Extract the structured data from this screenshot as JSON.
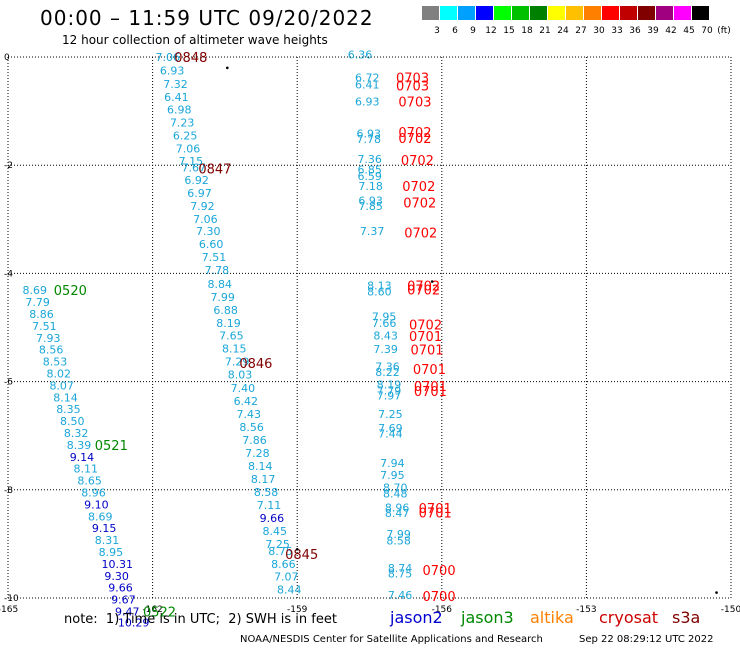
{
  "header": {
    "title": "00:00 – 11:59 UTC 09/20/2022",
    "subtitle": "12 hour collection of altimeter wave heights"
  },
  "colorbar": {
    "unit": "(ft)",
    "bins": [
      {
        "label": "3",
        "color": "#808080"
      },
      {
        "label": "6",
        "color": "#00ffff"
      },
      {
        "label": "9",
        "color": "#00a0ff"
      },
      {
        "label": "12",
        "color": "#0000ff"
      },
      {
        "label": "15",
        "color": "#00ff00"
      },
      {
        "label": "18",
        "color": "#00c000"
      },
      {
        "label": "21",
        "color": "#008000"
      },
      {
        "label": "24",
        "color": "#ffff00"
      },
      {
        "label": "27",
        "color": "#ffc000"
      },
      {
        "label": "30",
        "color": "#ff8000"
      },
      {
        "label": "33",
        "color": "#ff0000"
      },
      {
        "label": "36",
        "color": "#c00000"
      },
      {
        "label": "39",
        "color": "#800000"
      },
      {
        "label": "42",
        "color": "#a00080"
      },
      {
        "label": "45",
        "color": "#ff00ff"
      },
      {
        "label": "70",
        "color": "#000000"
      }
    ]
  },
  "chart_data": {
    "type": "scatter",
    "description_of_axes": "longitude (x) vs latitude (y)",
    "xlim": [
      -165,
      -150
    ],
    "ylim": [
      -10,
      0
    ],
    "x_ticks": [
      "-165",
      "-162",
      "-159",
      "-156",
      "-153",
      "-150"
    ],
    "y_ticks": [
      "0",
      "-2",
      "-4",
      "-6",
      "-8",
      "-10"
    ],
    "colors": {
      "cyan": "#1aa6d8",
      "blue": "#0000c8",
      "red": "#ff0000",
      "darkred": "#800000",
      "green": "#008800"
    },
    "heights": [
      {
        "text": "7.06",
        "lon": -161.94,
        "lat": 0,
        "c": "cyan"
      },
      {
        "text": "6.93",
        "lon": -161.85,
        "lat": -0.25,
        "c": "cyan"
      },
      {
        "text": "7.32",
        "lon": -161.78,
        "lat": -0.5,
        "c": "cyan"
      },
      {
        "text": "6.41",
        "lon": -161.76,
        "lat": -0.74,
        "c": "cyan"
      },
      {
        "text": "6.98",
        "lon": -161.7,
        "lat": -0.97,
        "c": "cyan"
      },
      {
        "text": "7.23",
        "lon": -161.64,
        "lat": -1.21,
        "c": "cyan"
      },
      {
        "text": "6.25",
        "lon": -161.58,
        "lat": -1.45,
        "c": "cyan"
      },
      {
        "text": "7.06",
        "lon": -161.52,
        "lat": -1.69,
        "c": "cyan"
      },
      {
        "text": "7.15",
        "lon": -161.46,
        "lat": -1.92,
        "c": "cyan"
      },
      {
        "text": "7.67",
        "lon": -161.4,
        "lat": -2.04,
        "c": "cyan"
      },
      {
        "text": "6.92",
        "lon": -161.34,
        "lat": -2.27,
        "c": "cyan"
      },
      {
        "text": "6.97",
        "lon": -161.28,
        "lat": -2.51,
        "c": "cyan"
      },
      {
        "text": "7.92",
        "lon": -161.22,
        "lat": -2.75,
        "c": "cyan"
      },
      {
        "text": "7.06",
        "lon": -161.16,
        "lat": -2.99,
        "c": "cyan"
      },
      {
        "text": "7.30",
        "lon": -161.1,
        "lat": -3.22,
        "c": "cyan"
      },
      {
        "text": "6.60",
        "lon": -161.04,
        "lat": -3.46,
        "c": "cyan"
      },
      {
        "text": "7.51",
        "lon": -160.98,
        "lat": -3.7,
        "c": "cyan"
      },
      {
        "text": "7.78",
        "lon": -160.92,
        "lat": -3.94,
        "c": "cyan"
      },
      {
        "text": "8.84",
        "lon": -160.86,
        "lat": -4.2,
        "c": "cyan"
      },
      {
        "text": "7.99",
        "lon": -160.8,
        "lat": -4.44,
        "c": "cyan"
      },
      {
        "text": "6.88",
        "lon": -160.74,
        "lat": -4.68,
        "c": "cyan"
      },
      {
        "text": "8.19",
        "lon": -160.68,
        "lat": -4.92,
        "c": "cyan"
      },
      {
        "text": "7.65",
        "lon": -160.62,
        "lat": -5.15,
        "c": "cyan"
      },
      {
        "text": "8.15",
        "lon": -160.56,
        "lat": -5.39,
        "c": "cyan"
      },
      {
        "text": "7.29",
        "lon": -160.5,
        "lat": -5.63,
        "c": "cyan"
      },
      {
        "text": "8.03",
        "lon": -160.44,
        "lat": -5.87,
        "c": "cyan"
      },
      {
        "text": "7.40",
        "lon": -160.38,
        "lat": -6.12,
        "c": "cyan"
      },
      {
        "text": "6.42",
        "lon": -160.32,
        "lat": -6.36,
        "c": "cyan"
      },
      {
        "text": "7.43",
        "lon": -160.26,
        "lat": -6.6,
        "c": "cyan"
      },
      {
        "text": "8.56",
        "lon": -160.2,
        "lat": -6.84,
        "c": "cyan"
      },
      {
        "text": "7.86",
        "lon": -160.14,
        "lat": -7.08,
        "c": "cyan"
      },
      {
        "text": "7.28",
        "lon": -160.08,
        "lat": -7.32,
        "c": "cyan"
      },
      {
        "text": "8.14",
        "lon": -160.02,
        "lat": -7.56,
        "c": "cyan"
      },
      {
        "text": "8.17",
        "lon": -159.96,
        "lat": -7.8,
        "c": "cyan"
      },
      {
        "text": "8.58",
        "lon": -159.9,
        "lat": -8.04,
        "c": "cyan"
      },
      {
        "text": "7.11",
        "lon": -159.84,
        "lat": -8.28,
        "c": "cyan"
      },
      {
        "text": "9.66",
        "lon": -159.78,
        "lat": -8.52,
        "c": "blue"
      },
      {
        "text": "8.45",
        "lon": -159.72,
        "lat": -8.76,
        "c": "cyan"
      },
      {
        "text": "7.25",
        "lon": -159.66,
        "lat": -9.0,
        "c": "cyan"
      },
      {
        "text": "8.75",
        "lon": -159.6,
        "lat": -9.13,
        "c": "cyan"
      },
      {
        "text": "8.66",
        "lon": -159.54,
        "lat": -9.37,
        "c": "cyan"
      },
      {
        "text": "7.07",
        "lon": -159.48,
        "lat": -9.6,
        "c": "cyan"
      },
      {
        "text": "8.44",
        "lon": -159.42,
        "lat": -9.84,
        "c": "cyan"
      },
      {
        "text": "8.69",
        "lon": -164.7,
        "lat": -4.31,
        "c": "cyan"
      },
      {
        "text": "7.79",
        "lon": -164.64,
        "lat": -4.53,
        "c": "cyan"
      },
      {
        "text": "8.86",
        "lon": -164.56,
        "lat": -4.75,
        "c": "cyan"
      },
      {
        "text": "7.51",
        "lon": -164.5,
        "lat": -4.97,
        "c": "cyan"
      },
      {
        "text": "7.93",
        "lon": -164.42,
        "lat": -5.19,
        "c": "cyan"
      },
      {
        "text": "8.56",
        "lon": -164.36,
        "lat": -5.41,
        "c": "cyan"
      },
      {
        "text": "8.53",
        "lon": -164.28,
        "lat": -5.63,
        "c": "cyan"
      },
      {
        "text": "8.02",
        "lon": -164.2,
        "lat": -5.85,
        "c": "cyan"
      },
      {
        "text": "8.07",
        "lon": -164.14,
        "lat": -6.07,
        "c": "cyan"
      },
      {
        "text": "8.14",
        "lon": -164.06,
        "lat": -6.29,
        "c": "cyan"
      },
      {
        "text": "8.35",
        "lon": -164.0,
        "lat": -6.51,
        "c": "cyan"
      },
      {
        "text": "8.50",
        "lon": -163.92,
        "lat": -6.73,
        "c": "cyan"
      },
      {
        "text": "8.32",
        "lon": -163.84,
        "lat": -6.95,
        "c": "cyan"
      },
      {
        "text": "8.39",
        "lon": -163.78,
        "lat": -7.17,
        "c": "cyan"
      },
      {
        "text": "9.14",
        "lon": -163.72,
        "lat": -7.39,
        "c": "blue"
      },
      {
        "text": "8.11",
        "lon": -163.64,
        "lat": -7.61,
        "c": "cyan"
      },
      {
        "text": "8.65",
        "lon": -163.56,
        "lat": -7.83,
        "c": "cyan"
      },
      {
        "text": "8.96",
        "lon": -163.48,
        "lat": -8.05,
        "c": "cyan"
      },
      {
        "text": "9.10",
        "lon": -163.42,
        "lat": -8.27,
        "c": "blue"
      },
      {
        "text": "8.69",
        "lon": -163.34,
        "lat": -8.49,
        "c": "cyan"
      },
      {
        "text": "9.15",
        "lon": -163.26,
        "lat": -8.71,
        "c": "blue"
      },
      {
        "text": "8.31",
        "lon": -163.2,
        "lat": -8.93,
        "c": "cyan"
      },
      {
        "text": "8.95",
        "lon": -163.12,
        "lat": -9.15,
        "c": "cyan"
      },
      {
        "text": "10.31",
        "lon": -163.06,
        "lat": -9.37,
        "c": "blue"
      },
      {
        "text": "9.30",
        "lon": -163.0,
        "lat": -9.59,
        "c": "blue"
      },
      {
        "text": "9.66",
        "lon": -162.92,
        "lat": -9.81,
        "c": "blue"
      },
      {
        "text": "9.67",
        "lon": -162.86,
        "lat": -10.03,
        "c": "blue"
      },
      {
        "text": "9.47",
        "lon": -162.78,
        "lat": -10.25,
        "c": "blue"
      },
      {
        "text": "10.29",
        "lon": -162.72,
        "lat": -10.45,
        "c": "blue"
      },
      {
        "text": "6.36",
        "lon": -157.95,
        "lat": 0.05,
        "c": "cyan"
      },
      {
        "text": "6.72",
        "lon": -157.8,
        "lat": -0.38,
        "c": "cyan"
      },
      {
        "text": "6.41",
        "lon": -157.8,
        "lat": -0.51,
        "c": "cyan"
      },
      {
        "text": "6.93",
        "lon": -157.8,
        "lat": -0.82,
        "c": "cyan"
      },
      {
        "text": "6.93",
        "lon": -157.77,
        "lat": -1.41,
        "c": "cyan"
      },
      {
        "text": "7.78",
        "lon": -157.77,
        "lat": -1.52,
        "c": "cyan"
      },
      {
        "text": "7.36",
        "lon": -157.75,
        "lat": -1.89,
        "c": "cyan"
      },
      {
        "text": "6.85",
        "lon": -157.75,
        "lat": -2.08,
        "c": "cyan"
      },
      {
        "text": "6.59",
        "lon": -157.75,
        "lat": -2.2,
        "c": "cyan"
      },
      {
        "text": "7.18",
        "lon": -157.73,
        "lat": -2.38,
        "c": "cyan"
      },
      {
        "text": "6.93",
        "lon": -157.73,
        "lat": -2.65,
        "c": "cyan"
      },
      {
        "text": "7.85",
        "lon": -157.73,
        "lat": -2.75,
        "c": "cyan"
      },
      {
        "text": "7.37",
        "lon": -157.7,
        "lat": -3.22,
        "c": "cyan"
      },
      {
        "text": "8.13",
        "lon": -157.55,
        "lat": -4.22,
        "c": "cyan"
      },
      {
        "text": "8.60",
        "lon": -157.55,
        "lat": -4.33,
        "c": "cyan"
      },
      {
        "text": "7.95",
        "lon": -157.45,
        "lat": -4.8,
        "c": "cyan"
      },
      {
        "text": "7.66",
        "lon": -157.45,
        "lat": -4.92,
        "c": "cyan"
      },
      {
        "text": "8.43",
        "lon": -157.42,
        "lat": -5.15,
        "c": "cyan"
      },
      {
        "text": "7.39",
        "lon": -157.42,
        "lat": -5.4,
        "c": "cyan"
      },
      {
        "text": "7.36",
        "lon": -157.38,
        "lat": -5.72,
        "c": "cyan"
      },
      {
        "text": "8.22",
        "lon": -157.38,
        "lat": -5.82,
        "c": "cyan"
      },
      {
        "text": "8.19",
        "lon": -157.35,
        "lat": -6.05,
        "c": "cyan"
      },
      {
        "text": "7.79",
        "lon": -157.35,
        "lat": -6.16,
        "c": "cyan"
      },
      {
        "text": "7.97",
        "lon": -157.35,
        "lat": -6.26,
        "c": "cyan"
      },
      {
        "text": "7.25",
        "lon": -157.32,
        "lat": -6.6,
        "c": "cyan"
      },
      {
        "text": "7.69",
        "lon": -157.32,
        "lat": -6.86,
        "c": "cyan"
      },
      {
        "text": "7.44",
        "lon": -157.32,
        "lat": -6.96,
        "c": "cyan"
      },
      {
        "text": "7.94",
        "lon": -157.28,
        "lat": -7.5,
        "c": "cyan"
      },
      {
        "text": "7.95",
        "lon": -157.28,
        "lat": -7.73,
        "c": "cyan"
      },
      {
        "text": "8.70",
        "lon": -157.22,
        "lat": -7.96,
        "c": "cyan"
      },
      {
        "text": "8.48",
        "lon": -157.22,
        "lat": -8.07,
        "c": "cyan"
      },
      {
        "text": "8.96",
        "lon": -157.18,
        "lat": -8.33,
        "c": "cyan"
      },
      {
        "text": "8.47",
        "lon": -157.18,
        "lat": -8.43,
        "c": "cyan"
      },
      {
        "text": "7.99",
        "lon": -157.15,
        "lat": -8.82,
        "c": "cyan"
      },
      {
        "text": "8.58",
        "lon": -157.15,
        "lat": -8.94,
        "c": "cyan"
      },
      {
        "text": "8.74",
        "lon": -157.12,
        "lat": -9.45,
        "c": "cyan"
      },
      {
        "text": "8.75",
        "lon": -157.12,
        "lat": -9.55,
        "c": "cyan"
      },
      {
        "text": "7.46",
        "lon": -157.12,
        "lat": -9.94,
        "c": "cyan"
      }
    ],
    "time_labels": [
      {
        "text": "0848",
        "lon": -161.55,
        "lat": 0.0,
        "c": "darkred"
      },
      {
        "text": "0847",
        "lon": -161.05,
        "lat": -2.06,
        "c": "darkred"
      },
      {
        "text": "0846",
        "lon": -160.2,
        "lat": -5.66,
        "c": "darkred"
      },
      {
        "text": "0845",
        "lon": -159.25,
        "lat": -9.19,
        "c": "darkred"
      },
      {
        "text": "0520",
        "lon": -164.05,
        "lat": -4.31,
        "c": "green"
      },
      {
        "text": "0521",
        "lon": -163.2,
        "lat": -7.17,
        "c": "green"
      },
      {
        "text": "0522",
        "lon": -162.2,
        "lat": -10.25,
        "c": "green"
      },
      {
        "text": "0703",
        "lon": -156.95,
        "lat": -0.38,
        "c": "red"
      },
      {
        "text": "0703",
        "lon": -156.95,
        "lat": -0.53,
        "c": "red"
      },
      {
        "text": "0703",
        "lon": -156.9,
        "lat": -0.82,
        "c": "red"
      },
      {
        "text": "0702",
        "lon": -156.9,
        "lat": -1.39,
        "c": "red"
      },
      {
        "text": "0702",
        "lon": -156.9,
        "lat": -1.5,
        "c": "red"
      },
      {
        "text": "0702",
        "lon": -156.85,
        "lat": -1.9,
        "c": "red"
      },
      {
        "text": "0702",
        "lon": -156.82,
        "lat": -2.38,
        "c": "red"
      },
      {
        "text": "0702",
        "lon": -156.8,
        "lat": -2.69,
        "c": "red"
      },
      {
        "text": "0702",
        "lon": -156.78,
        "lat": -3.24,
        "c": "red"
      },
      {
        "text": "0702",
        "lon": -156.72,
        "lat": -4.22,
        "c": "red"
      },
      {
        "text": "0702",
        "lon": -156.72,
        "lat": -4.3,
        "c": "red"
      },
      {
        "text": "0702",
        "lon": -156.68,
        "lat": -4.94,
        "c": "red"
      },
      {
        "text": "0701",
        "lon": -156.68,
        "lat": -5.16,
        "c": "red"
      },
      {
        "text": "0701",
        "lon": -156.65,
        "lat": -5.41,
        "c": "red"
      },
      {
        "text": "0701",
        "lon": -156.6,
        "lat": -5.77,
        "c": "red"
      },
      {
        "text": "0701",
        "lon": -156.58,
        "lat": -6.08,
        "c": "red"
      },
      {
        "text": "0701",
        "lon": -156.58,
        "lat": -6.17,
        "c": "red"
      },
      {
        "text": "0701",
        "lon": -156.48,
        "lat": -8.34,
        "c": "red"
      },
      {
        "text": "0701",
        "lon": -156.48,
        "lat": -8.42,
        "c": "red"
      },
      {
        "text": "0700",
        "lon": -156.4,
        "lat": -9.48,
        "c": "red"
      },
      {
        "text": "0700",
        "lon": -156.4,
        "lat": -9.96,
        "c": "red"
      }
    ]
  },
  "footer": {
    "note": "note:  1) Time is in UTC;  2) SWH is in feet",
    "satellites": [
      {
        "name": "jason2",
        "color": "#0000d0"
      },
      {
        "name": "jason3",
        "color": "#008800"
      },
      {
        "name": "altika",
        "color": "#ff8000"
      },
      {
        "name": "cryosat",
        "color": "#cc0000"
      },
      {
        "name": "s3a",
        "color": "#800000"
      }
    ],
    "credit": "NOAA/NESDIS Center for Satellite Applications and Research",
    "timestamp": "Sep 22 08:29:12 UTC 2022"
  }
}
